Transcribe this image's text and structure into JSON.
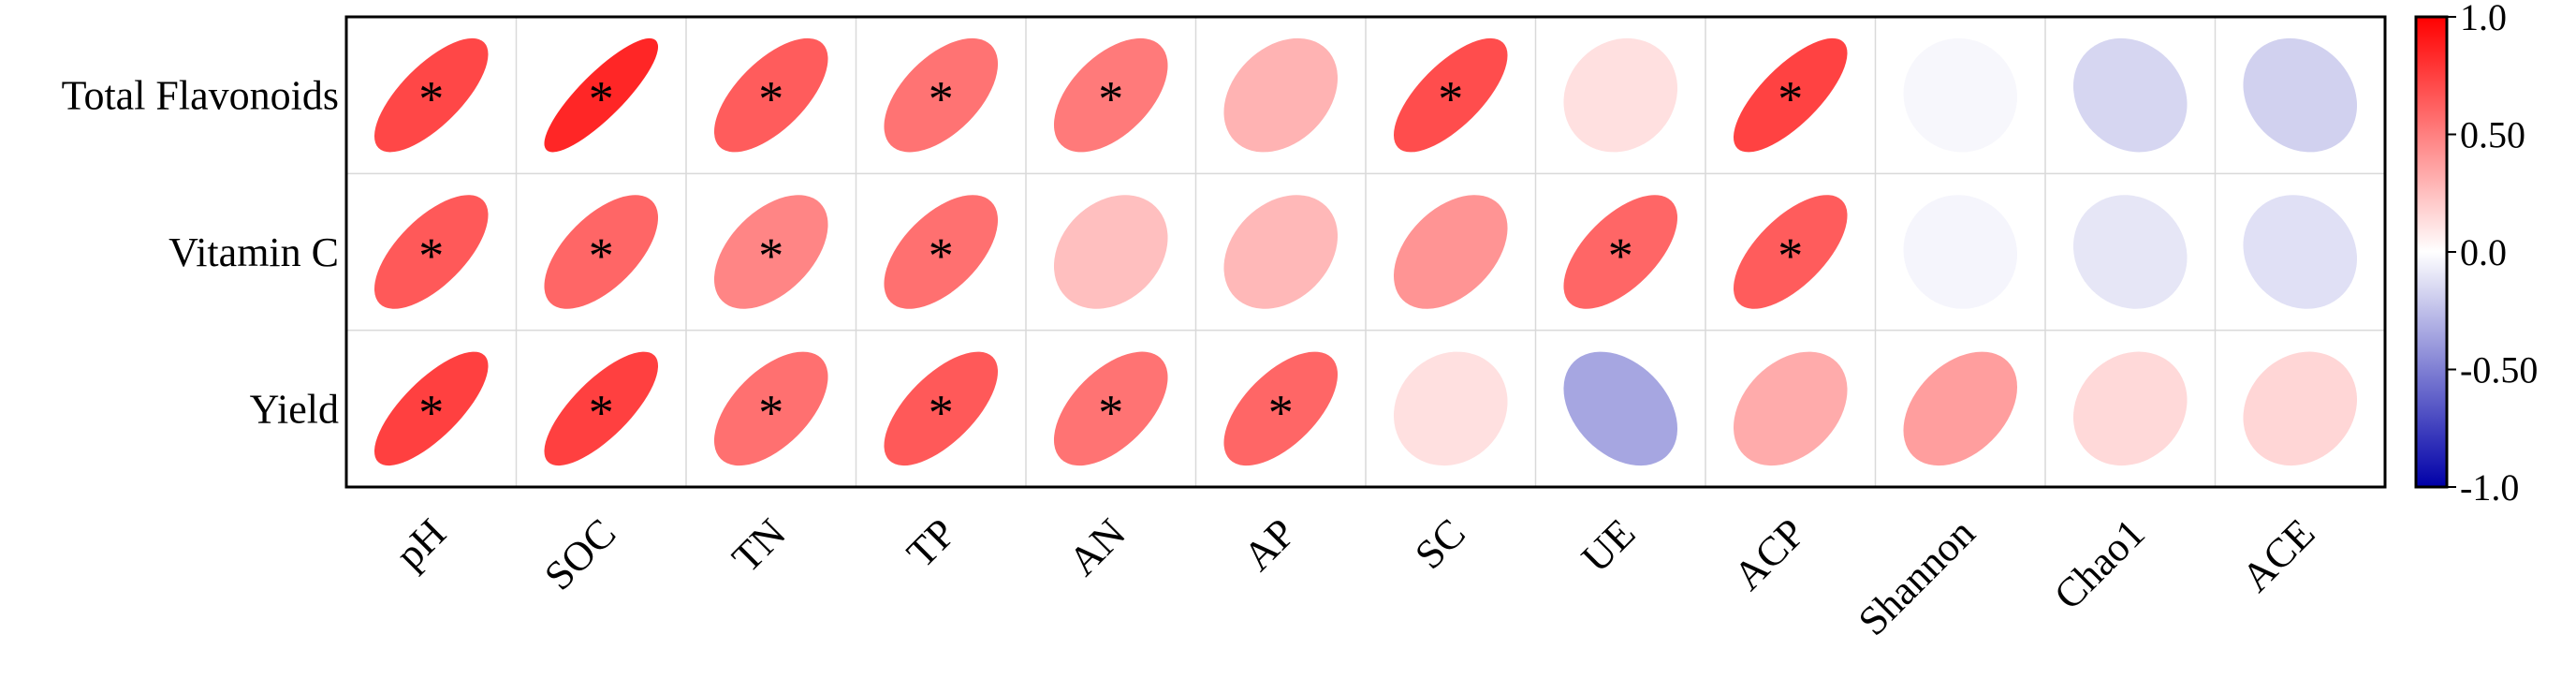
{
  "chart_data": {
    "type": "heatmap",
    "subtype": "correlation-ellipse",
    "rows": [
      "Total Flavonoids",
      "Vitamin C",
      "Yield"
    ],
    "columns": [
      "pH",
      "SOC",
      "TN",
      "TP",
      "AN",
      "AP",
      "SC",
      "UE",
      "ACP",
      "Shannon",
      "Chao1",
      "ACE"
    ],
    "values": [
      [
        0.72,
        0.85,
        0.64,
        0.55,
        0.52,
        0.3,
        0.7,
        0.12,
        0.74,
        -0.03,
        -0.16,
        -0.18
      ],
      [
        0.65,
        0.6,
        0.48,
        0.56,
        0.25,
        0.28,
        0.42,
        0.6,
        0.64,
        -0.04,
        -0.1,
        -0.12
      ],
      [
        0.75,
        0.75,
        0.56,
        0.65,
        0.55,
        0.6,
        0.12,
        -0.35,
        0.33,
        0.38,
        0.15,
        0.16
      ]
    ],
    "significant": [
      [
        true,
        true,
        true,
        true,
        true,
        false,
        true,
        false,
        true,
        false,
        false,
        false
      ],
      [
        true,
        true,
        true,
        true,
        false,
        false,
        false,
        true,
        true,
        false,
        false,
        false
      ],
      [
        true,
        true,
        true,
        true,
        true,
        true,
        false,
        false,
        false,
        false,
        false,
        false
      ]
    ],
    "significance_marker": "*",
    "colorbar": {
      "range": [
        -1.0,
        1.0
      ],
      "ticks": [
        "1.0",
        "0.50",
        "0.0",
        "-0.50",
        "-1.0"
      ],
      "colors": {
        "negative": "#0000a8",
        "zero": "#ffffff",
        "positive": "#ff0000"
      }
    },
    "grid": true
  }
}
